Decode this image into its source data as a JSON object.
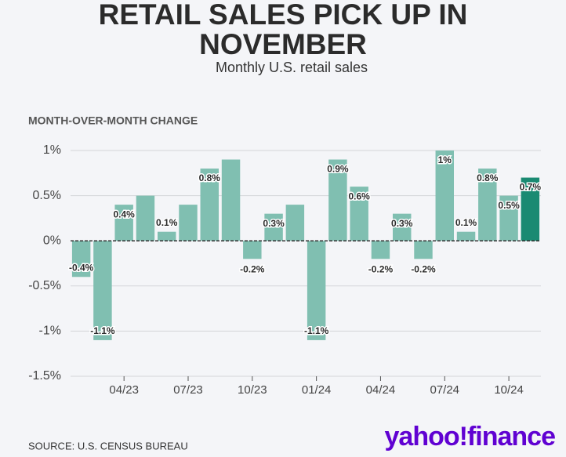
{
  "chart_data": {
    "type": "bar",
    "title": "RETAIL SALES PICK UP IN NOVEMBER",
    "subtitle": "Monthly U.S. retail sales",
    "y_axis_label": "MONTH-OVER-MONTH CHANGE",
    "source": "SOURCE: U.S. CENSUS BUREAU",
    "logo": "yahoo!finance",
    "categories": [
      null,
      null,
      "04/23",
      null,
      null,
      "07/23",
      null,
      null,
      "10/23",
      null,
      null,
      "01/24",
      null,
      null,
      "04/24",
      null,
      null,
      "07/24",
      null,
      null,
      "10/24",
      null
    ],
    "values": [
      -0.4,
      -1.1,
      0.4,
      0.5,
      0.1,
      0.4,
      0.8,
      0.9,
      -0.2,
      0.3,
      0.4,
      -1.1,
      0.9,
      0.6,
      -0.2,
      0.3,
      -0.2,
      1.0,
      0.1,
      0.8,
      0.5,
      0.7
    ],
    "value_labels": [
      "-0.4%",
      "-1.1%",
      "0.4%",
      null,
      "0.1%",
      null,
      "0.8%",
      null,
      "-0.2%",
      "0.3%",
      null,
      "-1.1%",
      "0.9%",
      "0.6%",
      "-0.2%",
      "0.3%",
      "-0.2%",
      "1%",
      "0.1%",
      "0.8%",
      "0.5%",
      "0.7%"
    ],
    "colors": [
      "#80bfb1",
      "#80bfb1",
      "#80bfb1",
      "#80bfb1",
      "#80bfb1",
      "#80bfb1",
      "#80bfb1",
      "#80bfb1",
      "#80bfb1",
      "#80bfb1",
      "#80bfb1",
      "#80bfb1",
      "#80bfb1",
      "#80bfb1",
      "#80bfb1",
      "#80bfb1",
      "#80bfb1",
      "#80bfb1",
      "#80bfb1",
      "#80bfb1",
      "#80bfb1",
      "#1a8a72"
    ],
    "ylim": [
      -1.5,
      1.1
    ],
    "yticks": [
      {
        "value": 1,
        "label": "1%"
      },
      {
        "value": 0.5,
        "label": "0.5%"
      },
      {
        "value": 0,
        "label": "0%"
      },
      {
        "value": -0.5,
        "label": "-0.5%"
      },
      {
        "value": -1,
        "label": "-1%"
      },
      {
        "value": -1.5,
        "label": "-1.5%"
      }
    ],
    "grid": true
  }
}
